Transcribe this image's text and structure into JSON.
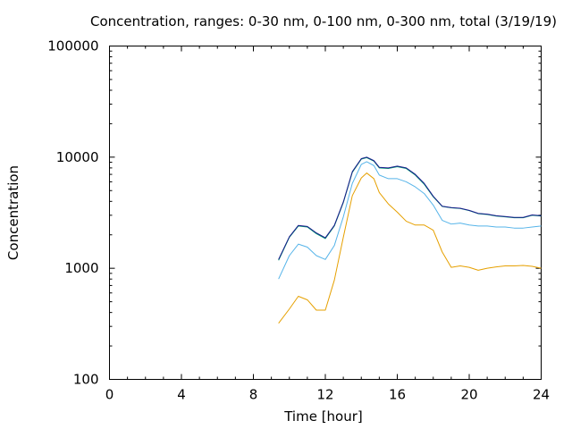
{
  "chart_data": {
    "type": "line",
    "title": "Concentration, ranges: 0-30 nm, 0-100 nm, 0-300 nm, total (3/19/19)",
    "xlabel": "Time [hour]",
    "ylabel": "Concentration",
    "xlim": [
      0,
      24
    ],
    "ylim": [
      100,
      100000
    ],
    "yscale": "log",
    "grid": false,
    "legend": "none",
    "x_ticks": [
      0,
      4,
      8,
      12,
      16,
      20,
      24
    ],
    "x_tick_labels": [
      "0",
      "4",
      "8",
      "12",
      "16",
      "20",
      "24"
    ],
    "y_ticks": [
      100,
      1000,
      10000,
      100000
    ],
    "y_tick_labels": [
      "100",
      "1000",
      "10000",
      "100000"
    ],
    "series": [
      {
        "color": "#e6a000",
        "x": [
          9.4,
          10.0,
          10.5,
          11.0,
          11.5,
          12.0,
          12.5,
          13.0,
          13.5,
          14.0,
          14.3,
          14.7,
          15.0,
          15.5,
          16.0,
          16.5,
          17.0,
          17.5,
          18.0,
          18.5,
          19.0,
          19.5,
          20.0,
          20.5,
          21.0,
          21.5,
          22.0,
          22.5,
          23.0,
          23.5,
          24.0
        ],
        "y": [
          320,
          430,
          560,
          520,
          420,
          420,
          780,
          1900,
          4500,
          6500,
          7200,
          6400,
          4800,
          3800,
          3200,
          2650,
          2450,
          2450,
          2200,
          1400,
          1020,
          1050,
          1020,
          960,
          1000,
          1030,
          1050,
          1050,
          1060,
          1040,
          1000
        ]
      },
      {
        "color": "#56b4e9",
        "x": [
          9.4,
          10.0,
          10.5,
          11.0,
          11.5,
          12.0,
          12.5,
          13.0,
          13.5,
          14.0,
          14.3,
          14.7,
          15.0,
          15.5,
          16.0,
          16.5,
          17.0,
          17.5,
          18.0,
          18.5,
          19.0,
          19.5,
          20.0,
          20.5,
          21.0,
          21.5,
          22.0,
          22.5,
          23.0,
          23.5,
          24.0
        ],
        "y": [
          800,
          1300,
          1650,
          1550,
          1300,
          1200,
          1600,
          2900,
          5800,
          8600,
          9100,
          8400,
          6900,
          6400,
          6400,
          6000,
          5400,
          4700,
          3700,
          2700,
          2500,
          2550,
          2450,
          2400,
          2400,
          2350,
          2350,
          2300,
          2300,
          2350,
          2400
        ]
      },
      {
        "color": "#009e73",
        "x": [
          9.4,
          10.0,
          10.5,
          11.0,
          11.5,
          12.0,
          12.5,
          13.0,
          13.5,
          14.0,
          14.3,
          14.7,
          15.0,
          15.5,
          16.0,
          16.5,
          17.0,
          17.5,
          18.0,
          18.5,
          19.0,
          19.5,
          20.0,
          20.5,
          21.0,
          21.5,
          22.0,
          22.5,
          23.0,
          23.5,
          24.0
        ],
        "y": [
          1180,
          1900,
          2400,
          2350,
          2050,
          1850,
          2400,
          3900,
          7300,
          9600,
          9900,
          9200,
          8000,
          7900,
          8200,
          7900,
          6900,
          5700,
          4400,
          3600,
          3500,
          3450,
          3300,
          3100,
          3050,
          2950,
          2900,
          2850,
          2850,
          3000,
          2950
        ]
      },
      {
        "color": "#1a1a8c",
        "x": [
          9.4,
          10.0,
          10.5,
          11.0,
          11.5,
          12.0,
          12.5,
          13.0,
          13.5,
          14.0,
          14.3,
          14.7,
          15.0,
          15.5,
          16.0,
          16.5,
          17.0,
          17.5,
          18.0,
          18.5,
          19.0,
          19.5,
          20.0,
          20.5,
          21.0,
          21.5,
          22.0,
          22.5,
          23.0,
          23.5,
          24.0
        ],
        "y": [
          1200,
          1920,
          2430,
          2380,
          2080,
          1880,
          2430,
          3950,
          7400,
          9700,
          10000,
          9300,
          8100,
          8000,
          8300,
          8000,
          7000,
          5800,
          4450,
          3620,
          3520,
          3470,
          3320,
          3120,
          3070,
          2970,
          2920,
          2870,
          2870,
          3020,
          2970
        ]
      }
    ]
  }
}
